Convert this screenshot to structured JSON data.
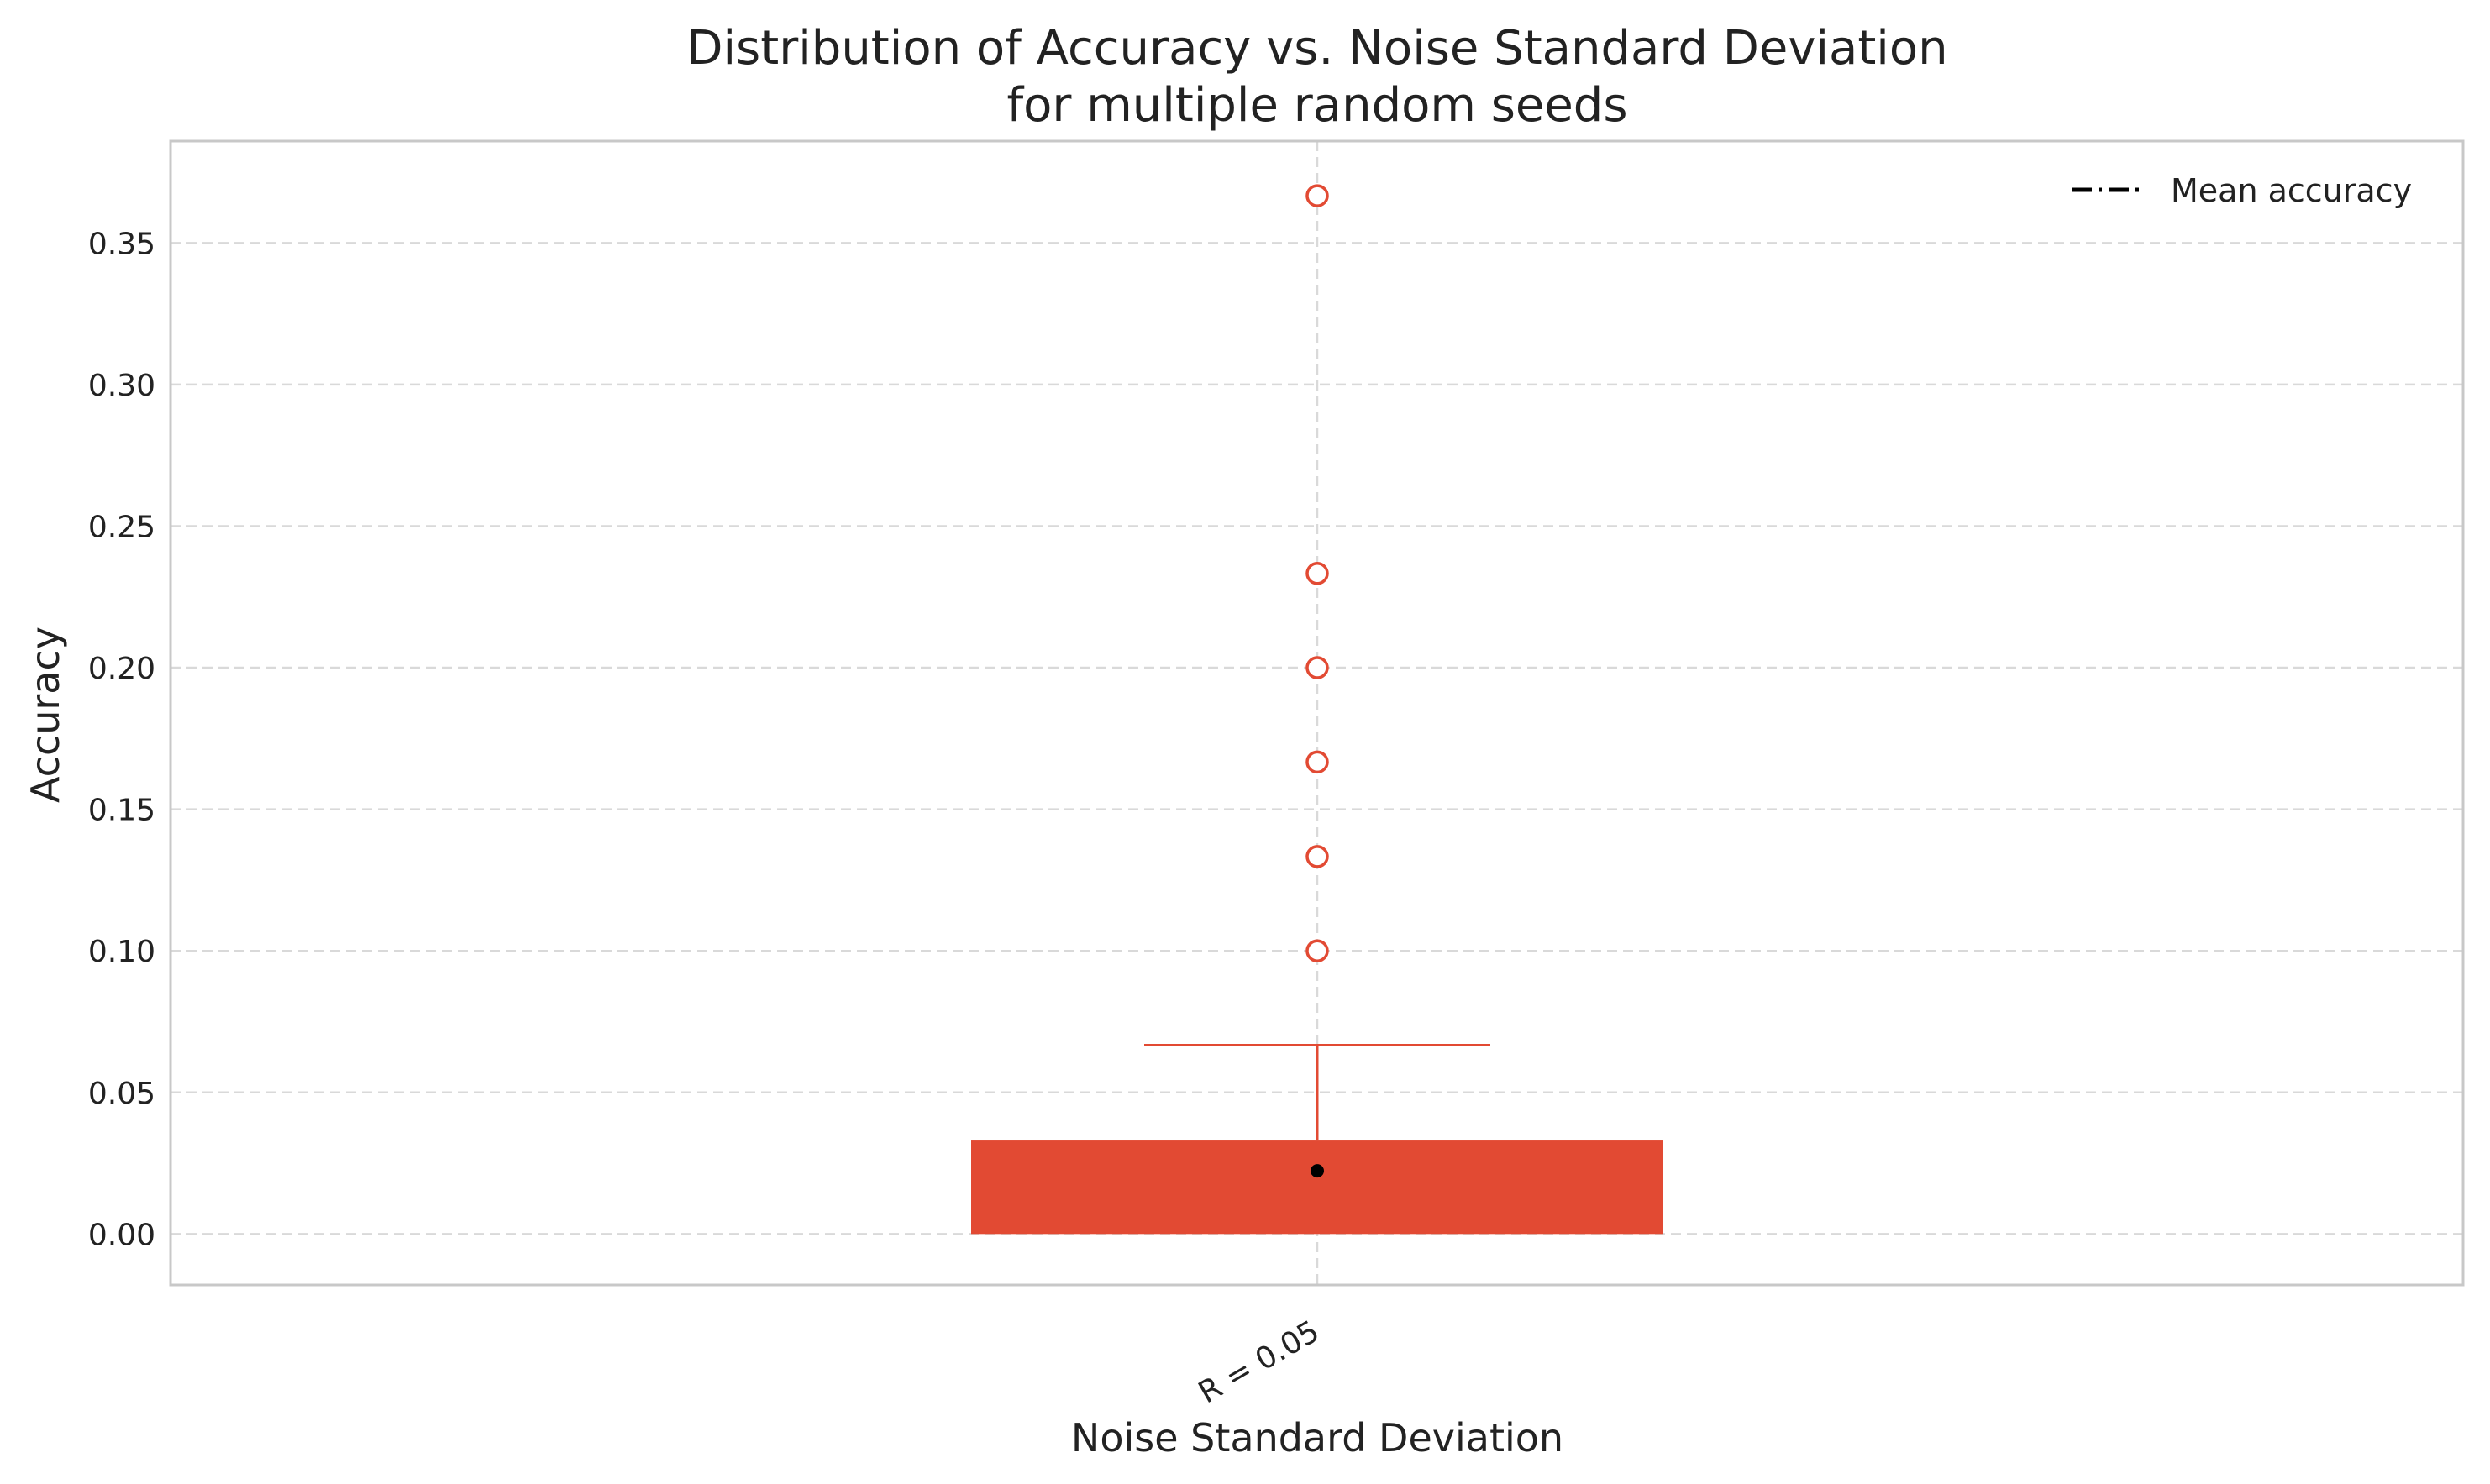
{
  "chart_data": {
    "type": "box",
    "title": "Distribution of Accuracy vs. Noise Standard Deviation",
    "subtitle": "for multiple random seeds",
    "xlabel": "Noise Standard Deviation",
    "ylabel": "Accuracy",
    "categories": [
      "R = 0.05"
    ],
    "ylim": [
      -0.018,
      0.386
    ],
    "yticks": [
      0.0,
      0.05,
      0.1,
      0.15,
      0.2,
      0.25,
      0.3,
      0.35
    ],
    "ytick_labels": [
      "0.00",
      "0.05",
      "0.10",
      "0.15",
      "0.20",
      "0.25",
      "0.30",
      "0.35"
    ],
    "grid": true,
    "legend": {
      "placement": "top-right",
      "entries": [
        "Mean accuracy"
      ]
    },
    "boxes": [
      {
        "category": "R = 0.05",
        "min": 0.0,
        "q1": 0.0,
        "median": 0.0,
        "q3": 0.0333,
        "whisker_low": 0.0,
        "whisker_high": 0.0667,
        "mean": 0.0223,
        "outliers": [
          0.1,
          0.1333,
          0.1667,
          0.2,
          0.2333,
          0.3667
        ]
      }
    ],
    "colors": {
      "box": "#e24a33",
      "mean_marker": "#000000",
      "grid": "#d9d9d9",
      "spine": "#c8c8c8",
      "text": "#222222"
    }
  }
}
